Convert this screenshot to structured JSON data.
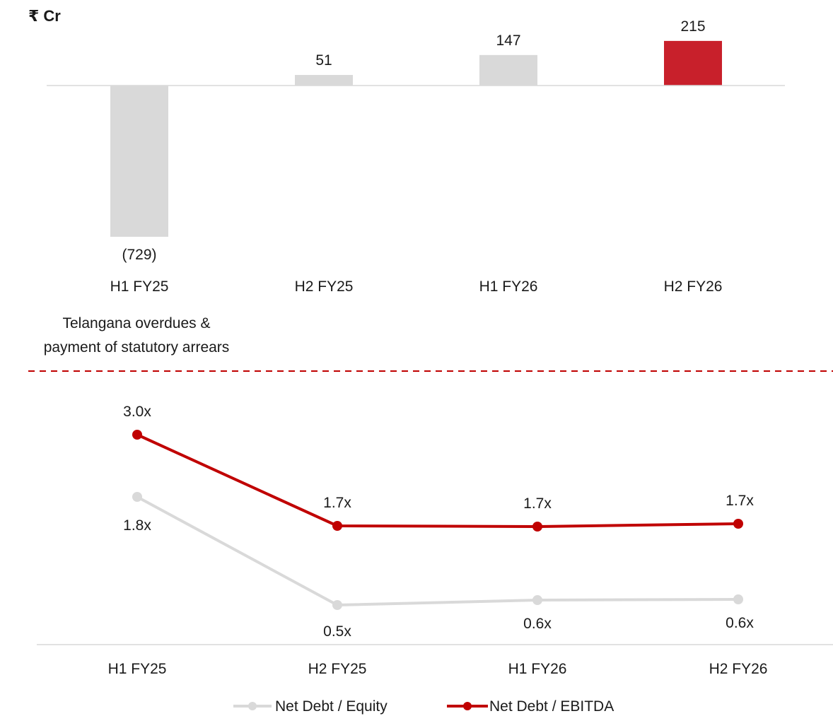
{
  "chart_data": [
    {
      "type": "bar",
      "unit_label": "₹ Cr",
      "categories": [
        "H1 FY25",
        "H2 FY25",
        "H1 FY26",
        "H2 FY26"
      ],
      "values": [
        -729,
        51,
        147,
        215
      ],
      "value_labels": [
        "(729)",
        "51",
        "147",
        "215"
      ],
      "bar_colors": [
        "#d9d9d9",
        "#d9d9d9",
        "#d9d9d9",
        "#c8202b"
      ],
      "annotation": [
        "Telangana overdues &",
        "payment of statutory arrears"
      ],
      "ylim": [
        -729,
        215
      ]
    },
    {
      "type": "line",
      "categories": [
        "H1 FY25",
        "H2 FY25",
        "H1 FY26",
        "H2 FY26"
      ],
      "series": [
        {
          "name": "Net Debt / Equity",
          "color": "#d9d9d9",
          "values": [
            1.8,
            0.5,
            0.6,
            0.6
          ],
          "labels": [
            "1.8x",
            "0.5x",
            "0.6x",
            "0.6x"
          ]
        },
        {
          "name": "Net Debt / EBITDA",
          "color": "#c00000",
          "values": [
            3.0,
            1.7,
            1.7,
            1.7
          ],
          "labels": [
            "3.0x",
            "1.7x",
            "1.7x",
            "1.7x"
          ]
        }
      ],
      "legend": "bottom"
    }
  ],
  "divider_color": "#c00000"
}
